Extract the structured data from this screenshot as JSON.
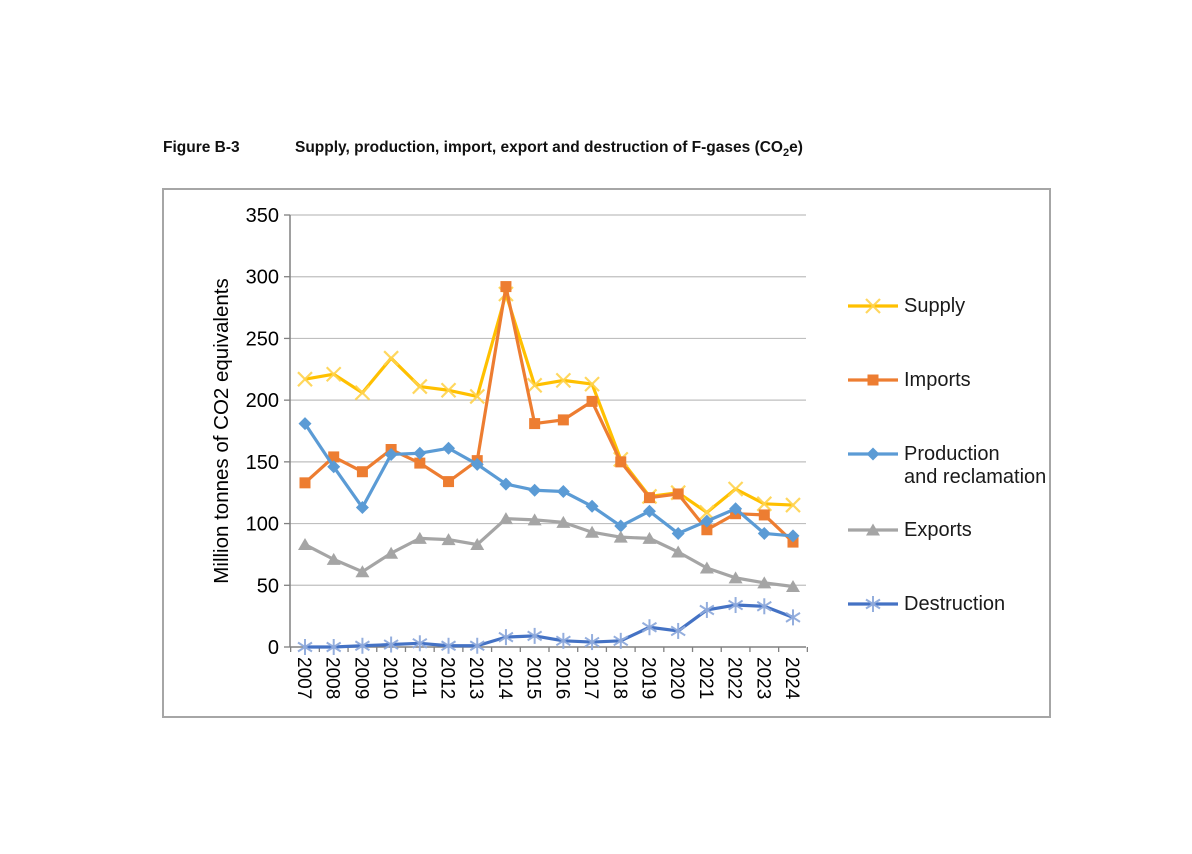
{
  "figure": {
    "label": "Figure B-3",
    "title_pre": "Supply, production, import, export and destruction of F-gases (CO",
    "title_sub": "2",
    "title_post": "e)"
  },
  "chart_data": {
    "type": "line",
    "title": "Supply, production, import, export and destruction of F-gases (CO2e)",
    "xlabel": "",
    "ylabel": "Million tonnes of CO2 equivalents",
    "ylim": [
      0,
      350
    ],
    "ytick_step": 50,
    "grid": true,
    "legend_position": "right",
    "categories": [
      "2007",
      "2008",
      "2009",
      "2010",
      "2011",
      "2012",
      "2013",
      "2014",
      "2015",
      "2016",
      "2017",
      "2018",
      "2019",
      "2020",
      "2021",
      "2022",
      "2023",
      "2024"
    ],
    "series": [
      {
        "name": "Supply",
        "legend_label": "Supply",
        "color": "#FFC000",
        "marker": "x",
        "marker_color": "#FFD34D",
        "values": [
          217,
          221,
          206,
          234,
          211,
          208,
          203,
          286,
          212,
          216,
          213,
          152,
          122,
          125,
          109,
          128,
          116,
          115
        ]
      },
      {
        "name": "Imports",
        "legend_label": "Imports",
        "color": "#ED7D31",
        "marker": "square",
        "marker_color": "#ED7D31",
        "values": [
          133,
          154,
          142,
          160,
          149,
          134,
          151,
          292,
          181,
          184,
          199,
          150,
          121,
          124,
          95,
          108,
          107,
          85
        ]
      },
      {
        "name": "Production and reclamation",
        "legend_label": "Production\nand reclamation",
        "color": "#5B9BD5",
        "marker": "diamond",
        "marker_color": "#5B9BD5",
        "values": [
          181,
          146,
          113,
          156,
          157,
          161,
          148,
          132,
          127,
          126,
          114,
          98,
          110,
          92,
          102,
          112,
          92,
          90
        ]
      },
      {
        "name": "Exports",
        "legend_label": "Exports",
        "color": "#A5A5A5",
        "marker": "triangle",
        "marker_color": "#A5A5A5",
        "values": [
          83,
          71,
          61,
          76,
          88,
          87,
          83,
          104,
          103,
          101,
          93,
          89,
          88,
          77,
          64,
          56,
          52,
          49
        ]
      },
      {
        "name": "Destruction",
        "legend_label": "Destruction",
        "color": "#4472C4",
        "marker": "asterisk",
        "marker_color": "#8FAADC",
        "values": [
          0,
          0,
          1,
          2,
          3,
          1,
          1,
          8,
          9,
          5,
          4,
          5,
          16,
          13,
          30,
          34,
          33,
          24
        ]
      }
    ]
  }
}
